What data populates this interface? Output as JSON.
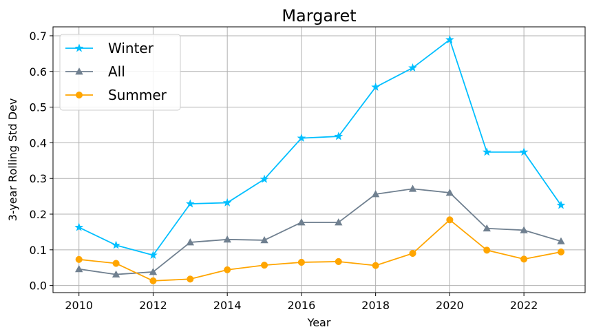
{
  "chart_data": {
    "type": "line",
    "title": "Margaret",
    "xlabel": "Year",
    "ylabel": "3-year Rolling Std Dev",
    "x": [
      2010,
      2011,
      2012,
      2013,
      2014,
      2015,
      2016,
      2017,
      2018,
      2019,
      2020,
      2021,
      2022,
      2023
    ],
    "xlim": [
      2009.3,
      2023.65
    ],
    "ylim": [
      -0.02,
      0.725
    ],
    "xticks": [
      2010,
      2012,
      2014,
      2016,
      2018,
      2020,
      2022
    ],
    "yticks": [
      0.0,
      0.1,
      0.2,
      0.3,
      0.4,
      0.5,
      0.6,
      0.7
    ],
    "grid": true,
    "legend_position": "top-left",
    "series": [
      {
        "name": "Winter",
        "color": "#00bfff",
        "marker": "star",
        "values": [
          0.163,
          0.113,
          0.085,
          0.229,
          0.232,
          0.298,
          0.413,
          0.418,
          0.556,
          0.61,
          0.689,
          0.374,
          0.374,
          0.225
        ]
      },
      {
        "name": "All",
        "color": "#708090",
        "marker": "triangle",
        "values": [
          0.046,
          0.031,
          0.038,
          0.121,
          0.129,
          0.127,
          0.177,
          0.177,
          0.256,
          0.271,
          0.26,
          0.16,
          0.155,
          0.124
        ]
      },
      {
        "name": "Summer",
        "color": "#ffa500",
        "marker": "circle",
        "values": [
          0.073,
          0.062,
          0.013,
          0.018,
          0.044,
          0.057,
          0.065,
          0.067,
          0.056,
          0.09,
          0.184,
          0.099,
          0.074,
          0.094
        ]
      }
    ]
  }
}
